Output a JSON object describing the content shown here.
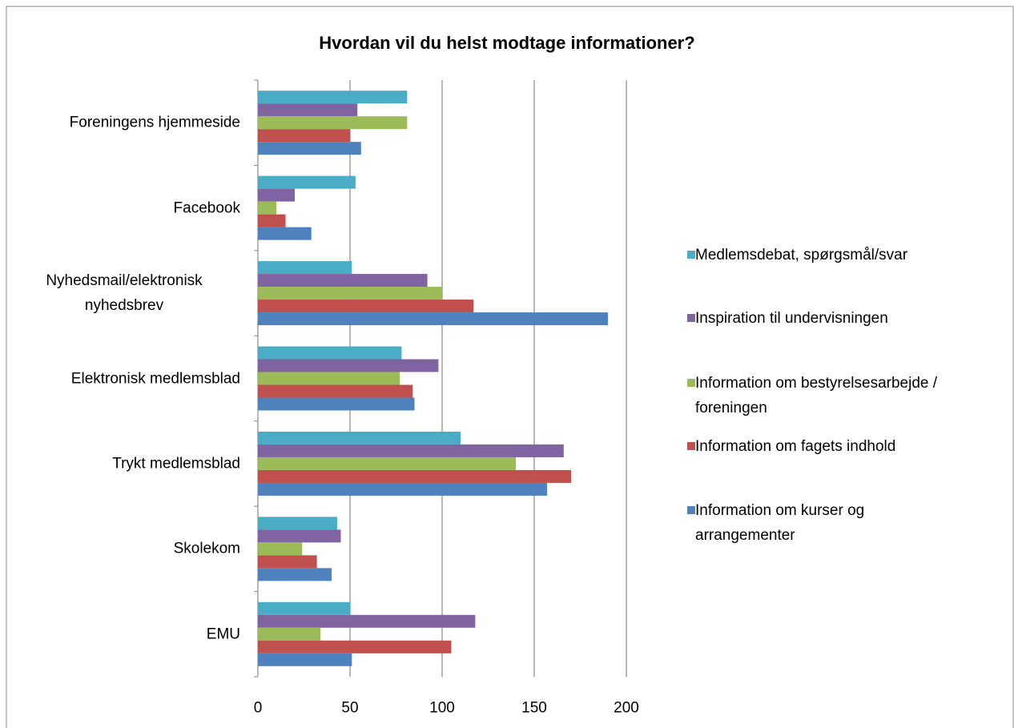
{
  "chart_data": {
    "type": "bar",
    "orientation": "horizontal",
    "title": "Hvordan vil du helst modtage informationer?",
    "categories": [
      "Foreningens hjemmeside",
      "Facebook",
      "Nyhedsmail/elektronisk nyhedsbrev",
      "Elektronisk medlemsblad",
      "Trykt medlemsblad",
      "Skolekom",
      "EMU"
    ],
    "series": [
      {
        "name": "Medlemsdebat, spørgsmål/svar",
        "color": "#4bacc6",
        "values": [
          81,
          53,
          51,
          78,
          110,
          43,
          50
        ]
      },
      {
        "name": "Inspiration til undervisningen",
        "color": "#8064a2",
        "values": [
          54,
          20,
          92,
          98,
          166,
          45,
          118
        ]
      },
      {
        "name": "Information om bestyrelsesarbejde / foreningen",
        "color": "#9bbb59",
        "values": [
          81,
          10,
          100,
          77,
          140,
          24,
          34
        ]
      },
      {
        "name": "Information om fagets indhold",
        "color": "#c0504d",
        "values": [
          50,
          15,
          117,
          84,
          170,
          32,
          105
        ]
      },
      {
        "name": "Information om kurser og arrangementer",
        "color": "#4f81bd",
        "values": [
          56,
          29,
          190,
          85,
          157,
          40,
          51
        ]
      }
    ],
    "xlim": [
      0,
      200
    ],
    "xticks": [
      0,
      50,
      100,
      150,
      200
    ],
    "grid": true,
    "legend": "right"
  }
}
